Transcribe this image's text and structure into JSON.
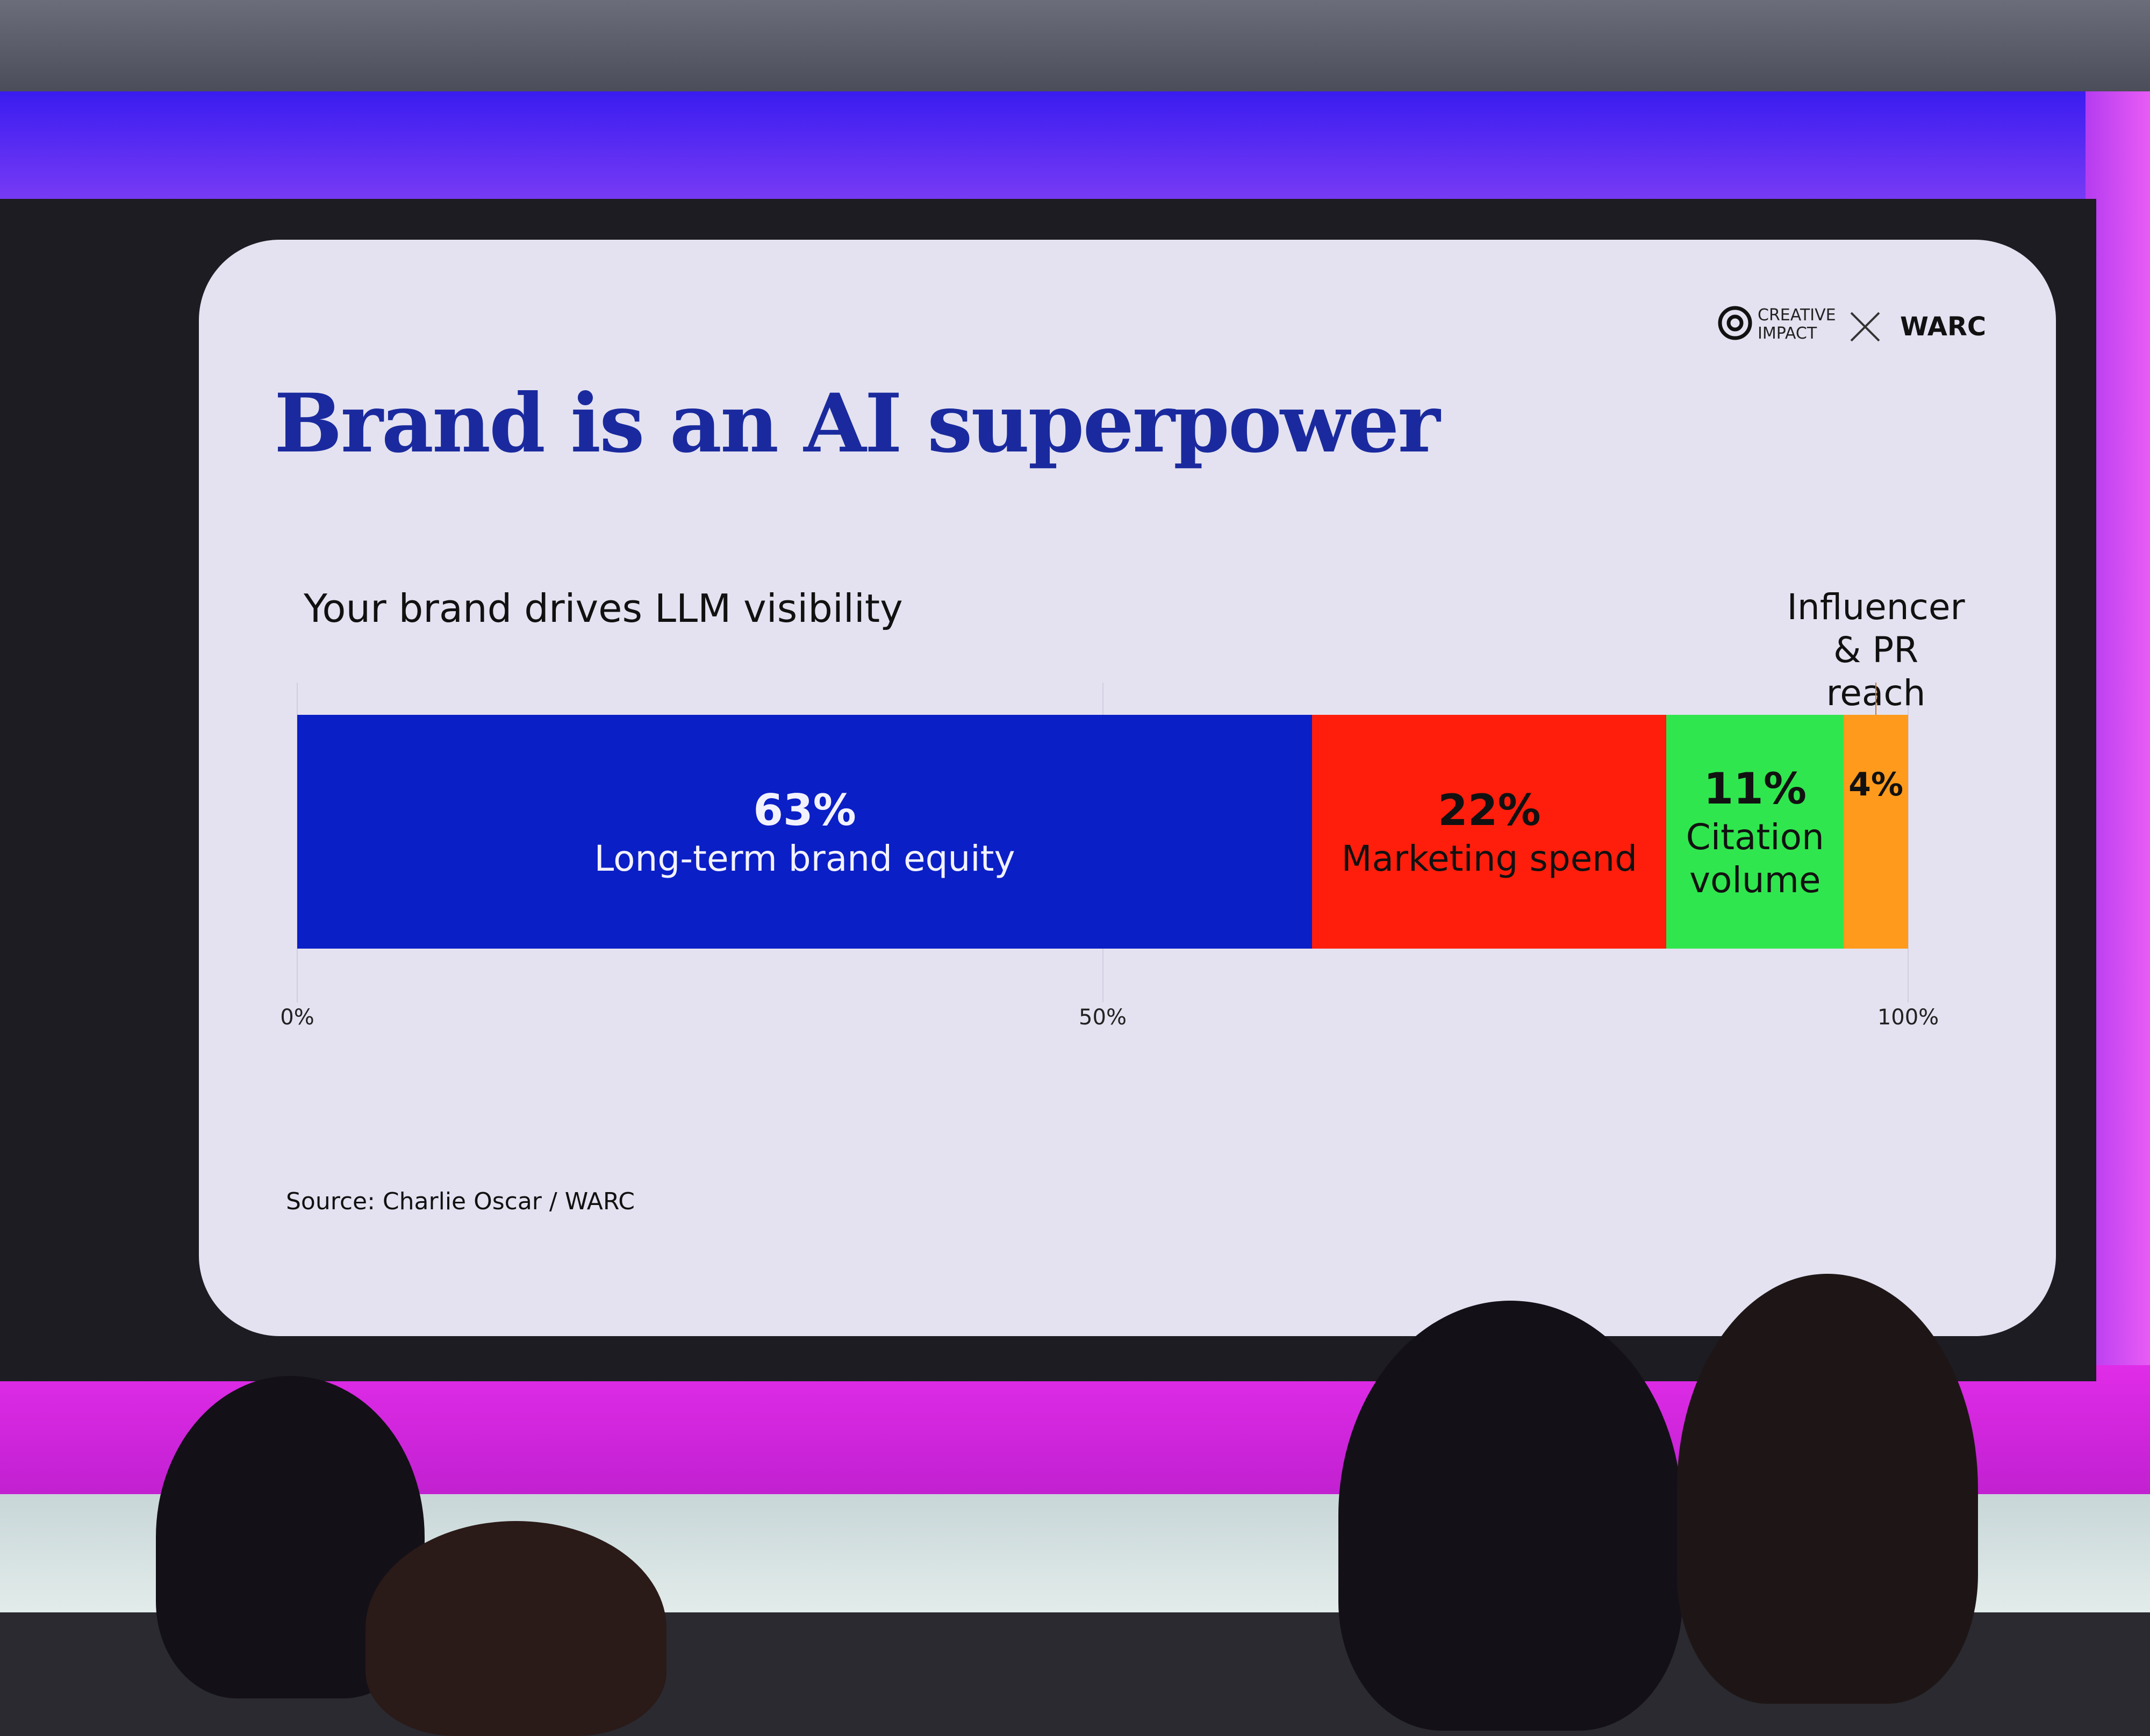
{
  "chart_data": {
    "type": "bar",
    "orientation": "horizontal",
    "stacked": true,
    "title": "Brand is an AI superpower",
    "subtitle": "Your brand drives LLM visibility",
    "source": "Source: Charlie Oscar / WARC",
    "logos": [
      "CREATIVE IMPACT",
      "WARC"
    ],
    "series": [
      {
        "name": "Long-term brand equity",
        "color": "#0b1fc6",
        "values": [
          63
        ],
        "value_labels": [
          "63%"
        ]
      },
      {
        "name": "Marketing spend",
        "color": "#ff1e0c",
        "values": [
          22
        ],
        "value_labels": [
          "22%"
        ]
      },
      {
        "name": "Citation volume",
        "color": "#30e64e",
        "values": [
          11
        ],
        "value_labels": [
          "11%"
        ]
      },
      {
        "name": "Influencer & PR reach",
        "color": "#ff9a1c",
        "values": [
          4
        ],
        "value_labels": [
          "4%"
        ]
      }
    ],
    "xlim": [
      0,
      100
    ],
    "xticks": [
      {
        "value": 0,
        "label": "0%"
      },
      {
        "value": 50,
        "label": "50%"
      },
      {
        "value": 100,
        "label": "100%"
      }
    ],
    "grid": true
  }
}
